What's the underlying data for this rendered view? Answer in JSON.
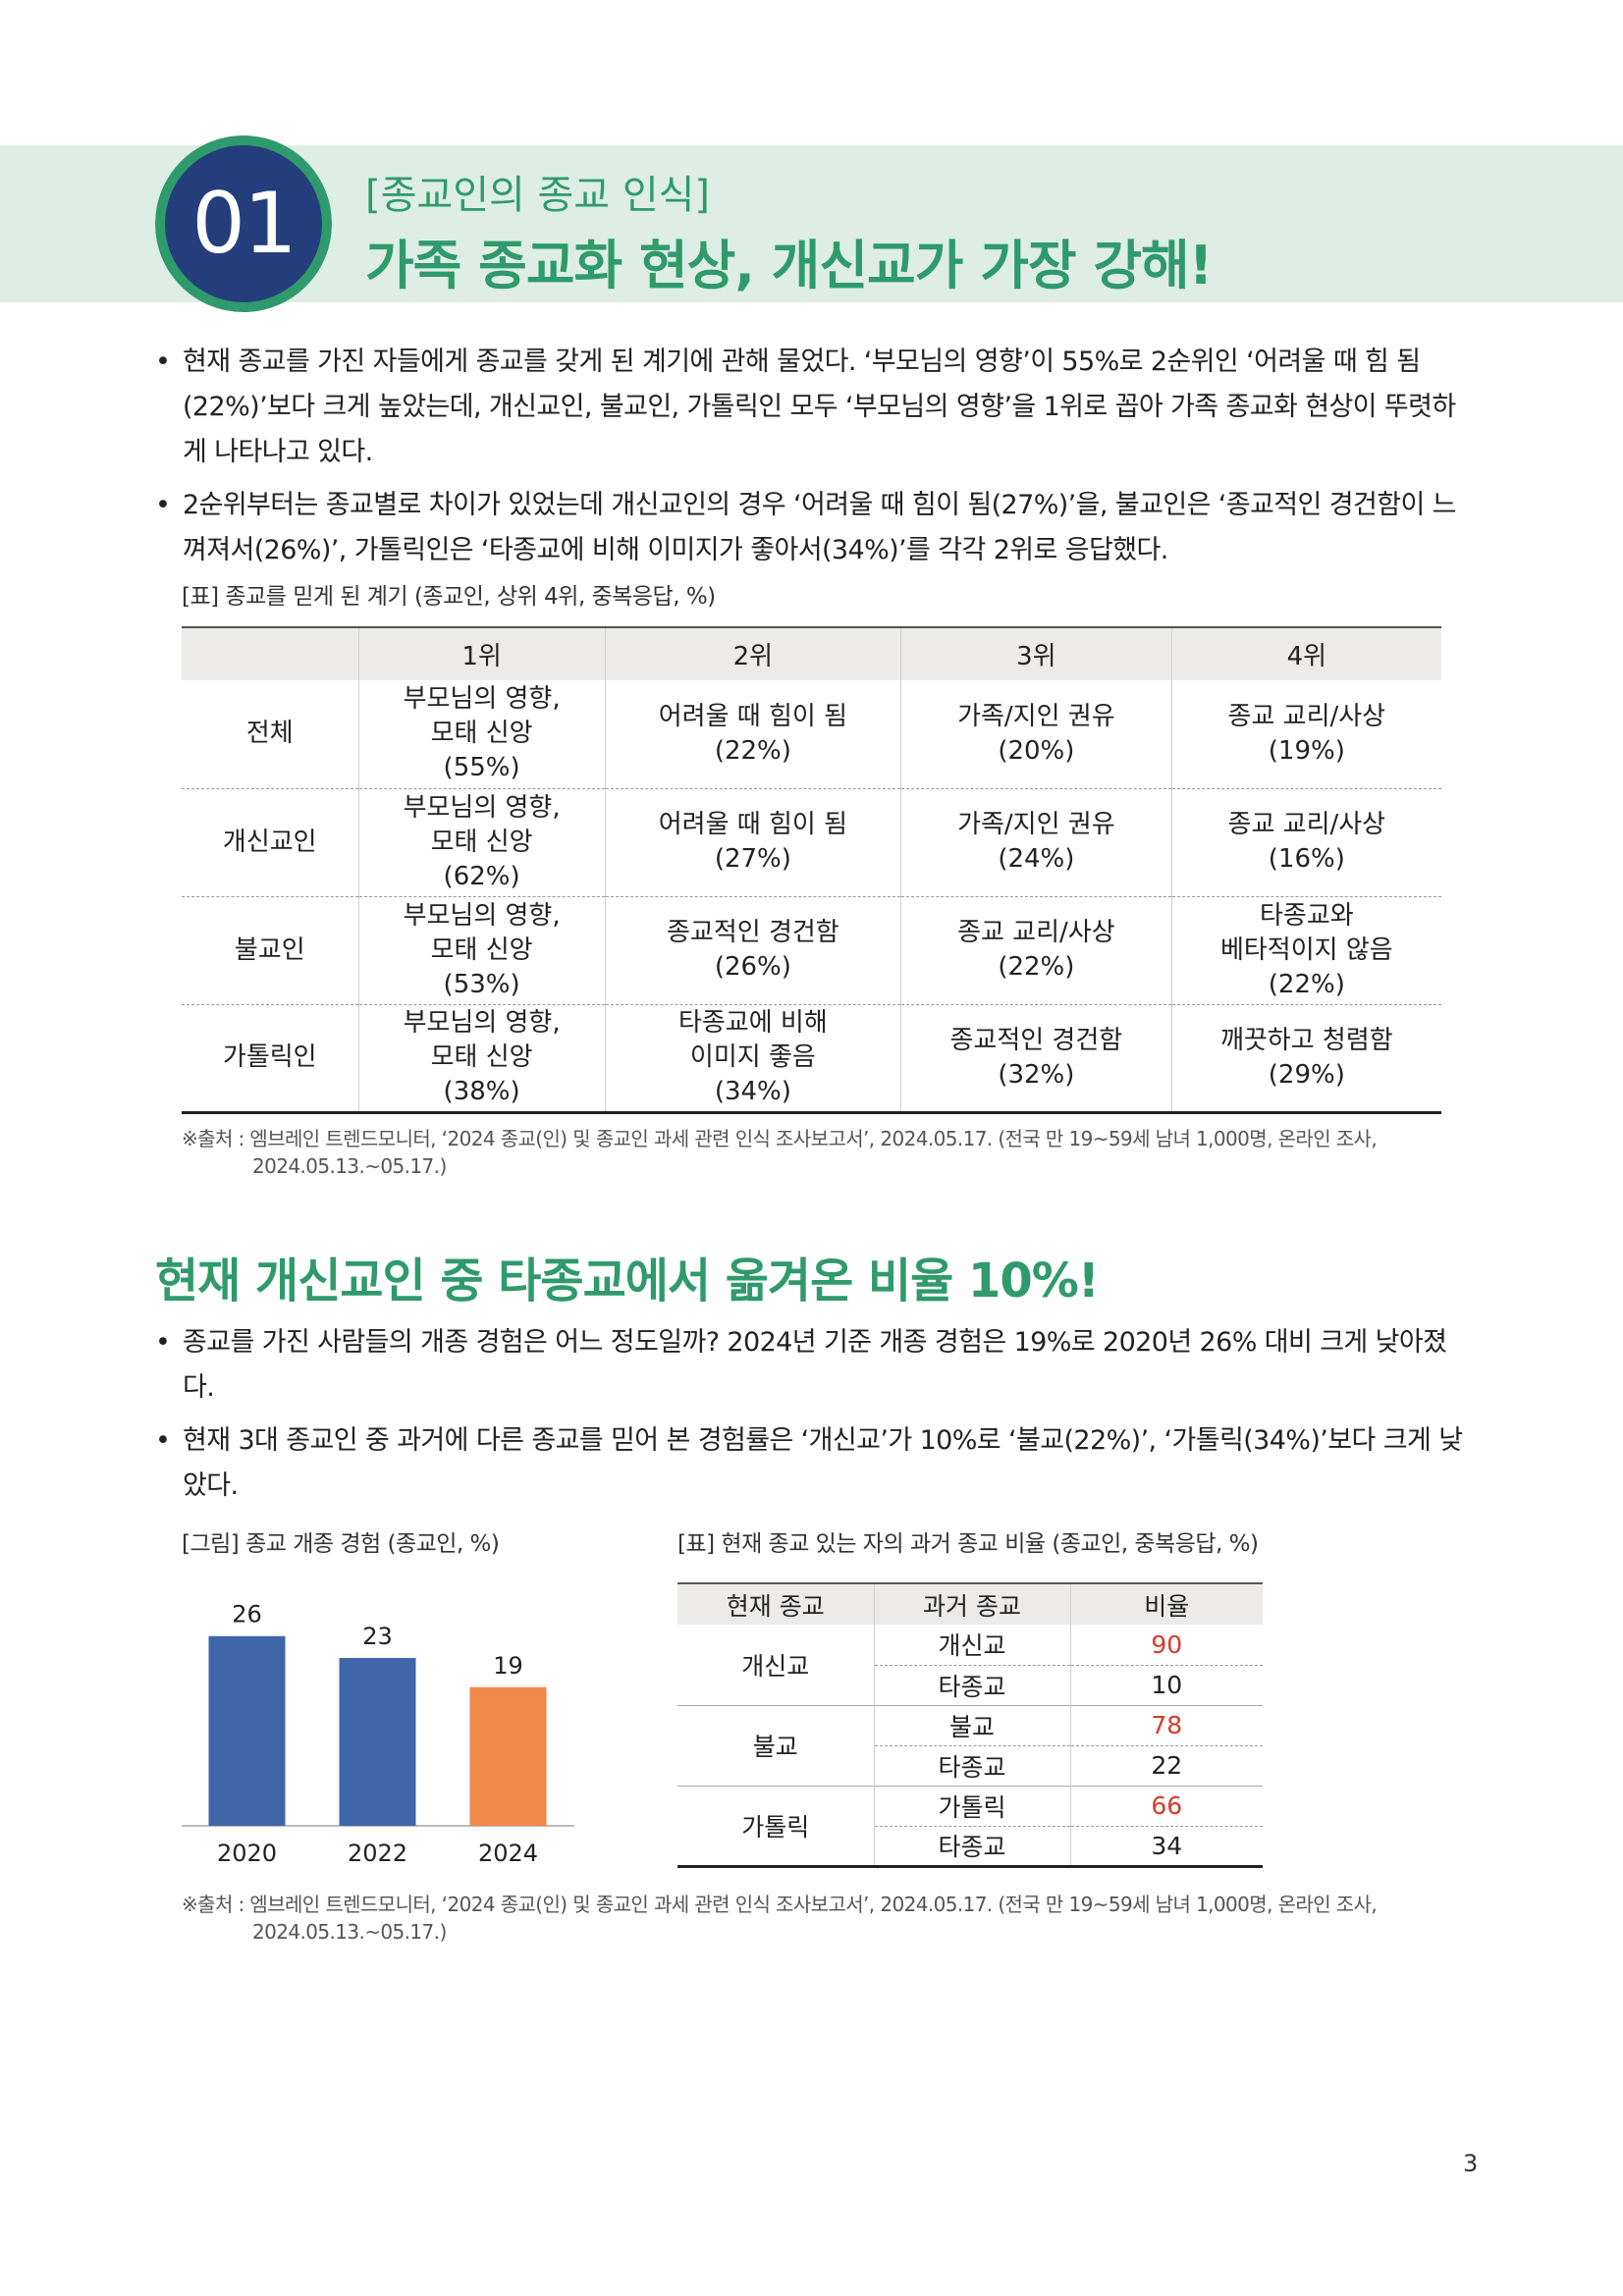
{
  "section1": {
    "number": "01",
    "kicker": "[종교인의 종교 인식]",
    "headline": "가족 종교화 현상, 개신교가 가장 강해!",
    "bullets": [
      "현재 종교를 가진 자들에게 종교를 갖게 된 계기에 관해 물었다. ‘부모님의 영향’이 55%로 2순위인 ‘어려울 때 힘 됨(22%)’보다 크게 높았는데, 개신교인, 불교인, 가톨릭인 모두 ‘부모님의 영향’을 1위로 꼽아 가족 종교화 현상이 뚜렷하게 나타나고 있다.",
      "2순위부터는 종교별로 차이가 있었는데 개신교인의 경우 ‘어려울 때 힘이 됨(27%)’을, 불교인은 ‘종교적인 경건함이 느껴져서(26%)’, 가톨릭인은 ‘타종교에 비해 이미지가 좋아서(34%)’를 각각 2위로 응답했다."
    ],
    "table_caption": "[표] 종교를 믿게 된 계기 (종교인, 상위 4위, 중복응답, %)",
    "table": {
      "headers": [
        "",
        "1위",
        "2위",
        "3위",
        "4위"
      ],
      "rows": [
        {
          "label": "전체",
          "cells": [
            [
              "부모님의 영향,",
              "모태 신앙",
              "(55%)"
            ],
            [
              "어려울 때 힘이 됨",
              "(22%)"
            ],
            [
              "가족/지인 권유",
              "(20%)"
            ],
            [
              "종교 교리/사상",
              "(19%)"
            ]
          ]
        },
        {
          "label": "개신교인",
          "cells": [
            [
              "부모님의 영향,",
              "모태 신앙",
              "(62%)"
            ],
            [
              "어려울 때 힘이 됨",
              "(27%)"
            ],
            [
              "가족/지인 권유",
              "(24%)"
            ],
            [
              "종교 교리/사상",
              "(16%)"
            ]
          ]
        },
        {
          "label": "불교인",
          "cells": [
            [
              "부모님의 영향,",
              "모태 신앙",
              "(53%)"
            ],
            [
              "종교적인 경건함",
              "(26%)"
            ],
            [
              "종교 교리/사상",
              "(22%)"
            ],
            [
              "타종교와",
              "베타적이지 않음",
              "(22%)"
            ]
          ]
        },
        {
          "label": "가톨릭인",
          "cells": [
            [
              "부모님의 영향,",
              "모태 신앙",
              "(38%)"
            ],
            [
              "타종교에 비해",
              "이미지 좋음",
              "(34%)"
            ],
            [
              "종교적인 경건함",
              "(32%)"
            ],
            [
              "깨끗하고 청렴함",
              "(29%)"
            ]
          ]
        }
      ]
    },
    "source_line1": "※출처 : 엠브레인 트렌드모니터, ‘2024 종교(인) 및 종교인 과세 관련 인식 조사보고서’, 2024.05.17. (전국 만 19~59세 남녀 1,000명, 온라인 조사,",
    "source_line2": "2024.05.13.~05.17.)"
  },
  "section2": {
    "headline": "현재 개신교인 중 타종교에서 옮겨온 비율 10%!",
    "bullets": [
      "종교를 가진 사람들의 개종 경험은 어느 정도일까? 2024년 기준 개종 경험은 19%로 2020년 26% 대비 크게 낮아졌다.",
      "현재 3대 종교인 중 과거에 다른 종교를 믿어 본 경험률은 ‘개신교’가 10%로 ‘불교(22%)’, ‘가톨릭(34%)’보다 크게 낮았다."
    ],
    "chart_caption": "[그림] 종교 개종 경험 (종교인, %)",
    "table_caption": "[표] 현재 종교 있는 자의 과거 종교 비율 (종교인, 중복응답, %)",
    "table": {
      "headers": [
        "현재 종교",
        "과거 종교",
        "비율"
      ],
      "groups": [
        {
          "name": "개신교",
          "rows": [
            {
              "past": "개신교",
              "value": "90",
              "highlight": true
            },
            {
              "past": "타종교",
              "value": "10",
              "highlight": false
            }
          ]
        },
        {
          "name": "불교",
          "rows": [
            {
              "past": "불교",
              "value": "78",
              "highlight": true
            },
            {
              "past": "타종교",
              "value": "22",
              "highlight": false
            }
          ]
        },
        {
          "name": "가톨릭",
          "rows": [
            {
              "past": "가톨릭",
              "value": "66",
              "highlight": true
            },
            {
              "past": "타종교",
              "value": "34",
              "highlight": false
            }
          ]
        }
      ]
    },
    "source_line1": "※출처 : 엠브레인 트렌드모니터, ‘2024 종교(인) 및 종교인 과세 관련 인식 조사보고서’, 2024.05.17. (전국 만 19~59세 남녀 1,000명, 온라인 조사,",
    "source_line2": "2024.05.13.~05.17.)"
  },
  "chart_data": {
    "type": "bar",
    "categories": [
      "2020",
      "2022",
      "2024"
    ],
    "values": [
      26,
      23,
      19
    ],
    "colors": [
      "#3f66a8",
      "#3f66a8",
      "#f0884a"
    ],
    "ylim": [
      0,
      30
    ],
    "title": "",
    "xlabel": "",
    "ylabel": ""
  },
  "colors": {
    "accent_green": "#2f9a6b",
    "circle_blue": "#243e7c",
    "banner_bg": "#deeee4",
    "highlight_red": "#d83a2c"
  },
  "page_number": "3"
}
